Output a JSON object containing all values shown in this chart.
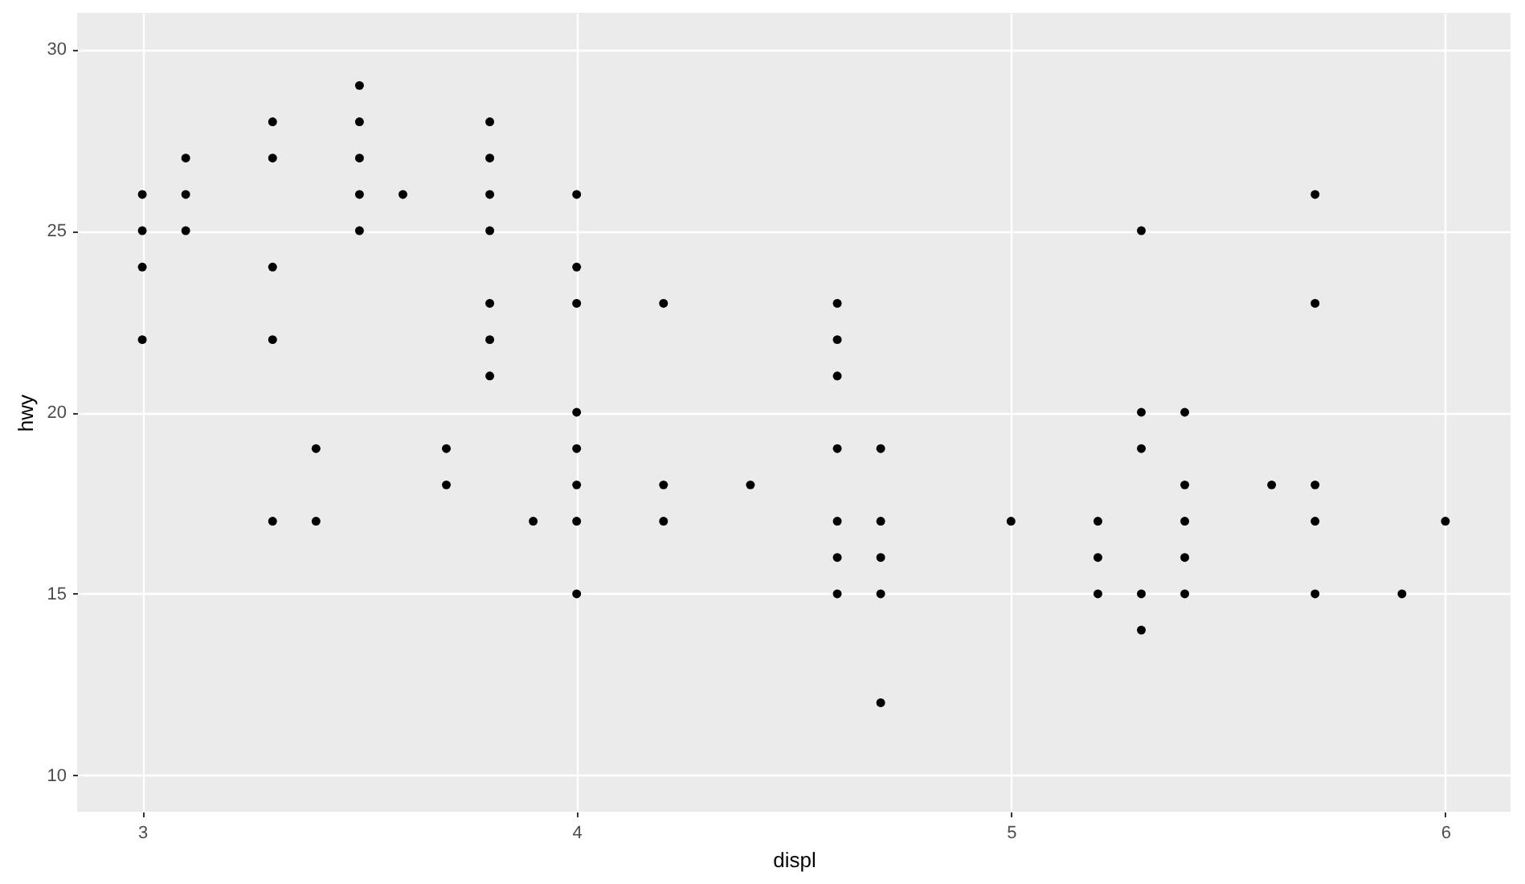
{
  "chart_data": {
    "type": "scatter",
    "xlabel": "displ",
    "ylabel": "hwy",
    "xlim": [
      2.85,
      6.15
    ],
    "ylim": [
      9,
      31
    ],
    "xticks": [
      3,
      4,
      5,
      6
    ],
    "yticks": [
      10,
      15,
      20,
      25,
      30
    ],
    "grid": true,
    "marker": "circle",
    "series": [
      {
        "color": "#000000",
        "x": [
          3,
          3,
          3,
          3,
          3.1,
          3.1,
          3.1,
          3.3,
          3.3,
          3.3,
          3.3,
          3.3,
          3.4,
          3.4,
          3.5,
          3.5,
          3.5,
          3.5,
          3.5,
          3.6,
          3.7,
          3.7,
          3.8,
          3.8,
          3.8,
          3.8,
          3.8,
          3.8,
          3.8,
          3.9,
          4,
          4,
          4,
          4,
          4,
          4,
          4,
          4,
          4.2,
          4.2,
          4.2,
          4.4,
          4.6,
          4.6,
          4.6,
          4.6,
          4.6,
          4.6,
          4.6,
          4.7,
          4.7,
          4.7,
          4.7,
          4.7,
          5,
          5.2,
          5.2,
          5.2,
          5.3,
          5.3,
          5.3,
          5.3,
          5.3,
          5.4,
          5.4,
          5.4,
          5.4,
          5.4,
          5.6,
          5.7,
          5.7,
          5.7,
          5.7,
          5.7,
          5.9,
          6
        ],
        "values": [
          26,
          25,
          24,
          22,
          27,
          26,
          25,
          28,
          27,
          24,
          22,
          17,
          19,
          17,
          29,
          28,
          27,
          26,
          25,
          26,
          19,
          18,
          28,
          27,
          26,
          25,
          23,
          22,
          21,
          17,
          26,
          24,
          23,
          20,
          19,
          18,
          17,
          15,
          23,
          18,
          17,
          18,
          23,
          22,
          21,
          19,
          17,
          16,
          15,
          19,
          17,
          16,
          15,
          12,
          17,
          17,
          16,
          15,
          25,
          20,
          19,
          15,
          14,
          20,
          18,
          17,
          16,
          15,
          18,
          26,
          23,
          18,
          17,
          15,
          15,
          17
        ]
      }
    ]
  }
}
